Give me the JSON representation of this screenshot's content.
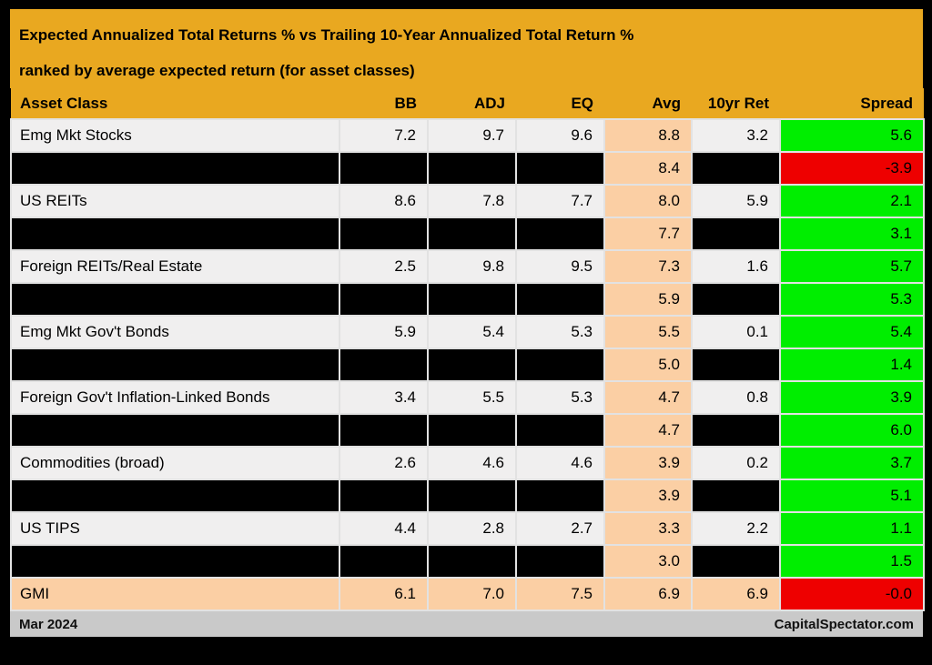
{
  "chart_data": {
    "type": "table",
    "title": "Expected Annualized Total Returns % vs Trailing 10-Year Annualized Total Return %",
    "subtitle": "ranked by average expected return (for asset classes)",
    "columns": [
      "Asset Class",
      "BB",
      "ADJ",
      "EQ",
      "Avg",
      "10yr Ret",
      "Spread"
    ],
    "rows": [
      {
        "asset": "Emg Mkt Stocks",
        "bb": "7.2",
        "adj": "9.7",
        "eq": "9.6",
        "avg": "8.8",
        "ret10": "3.2",
        "spread": "5.6",
        "style": "normal",
        "spread_color": "green"
      },
      {
        "asset": "",
        "bb": "",
        "adj": "",
        "eq": "",
        "avg": "8.4",
        "ret10": "",
        "spread": "-3.9",
        "style": "redacted",
        "spread_color": "red"
      },
      {
        "asset": "US REITs",
        "bb": "8.6",
        "adj": "7.8",
        "eq": "7.7",
        "avg": "8.0",
        "ret10": "5.9",
        "spread": "2.1",
        "style": "normal",
        "spread_color": "green"
      },
      {
        "asset": "",
        "bb": "",
        "adj": "",
        "eq": "",
        "avg": "7.7",
        "ret10": "",
        "spread": "3.1",
        "style": "redacted",
        "spread_color": "green"
      },
      {
        "asset": "Foreign REITs/Real Estate",
        "bb": "2.5",
        "adj": "9.8",
        "eq": "9.5",
        "avg": "7.3",
        "ret10": "1.6",
        "spread": "5.7",
        "style": "normal",
        "spread_color": "green"
      },
      {
        "asset": "",
        "bb": "",
        "adj": "",
        "eq": "",
        "avg": "5.9",
        "ret10": "",
        "spread": "5.3",
        "style": "redacted",
        "spread_color": "green"
      },
      {
        "asset": "Emg Mkt Gov't Bonds",
        "bb": "5.9",
        "adj": "5.4",
        "eq": "5.3",
        "avg": "5.5",
        "ret10": "0.1",
        "spread": "5.4",
        "style": "normal",
        "spread_color": "green"
      },
      {
        "asset": "",
        "bb": "",
        "adj": "",
        "eq": "",
        "avg": "5.0",
        "ret10": "",
        "spread": "1.4",
        "style": "redacted",
        "spread_color": "green"
      },
      {
        "asset": "Foreign Gov't Inflation-Linked Bonds",
        "bb": "3.4",
        "adj": "5.5",
        "eq": "5.3",
        "avg": "4.7",
        "ret10": "0.8",
        "spread": "3.9",
        "style": "normal",
        "spread_color": "green"
      },
      {
        "asset": "",
        "bb": "",
        "adj": "",
        "eq": "",
        "avg": "4.7",
        "ret10": "",
        "spread": "6.0",
        "style": "redacted",
        "spread_color": "green"
      },
      {
        "asset": "Commodities (broad)",
        "bb": "2.6",
        "adj": "4.6",
        "eq": "4.6",
        "avg": "3.9",
        "ret10": "0.2",
        "spread": "3.7",
        "style": "normal",
        "spread_color": "green"
      },
      {
        "asset": "",
        "bb": "",
        "adj": "",
        "eq": "",
        "avg": "3.9",
        "ret10": "",
        "spread": "5.1",
        "style": "redacted",
        "spread_color": "green"
      },
      {
        "asset": "US TIPS",
        "bb": "4.4",
        "adj": "2.8",
        "eq": "2.7",
        "avg": "3.3",
        "ret10": "2.2",
        "spread": "1.1",
        "style": "normal",
        "spread_color": "green"
      },
      {
        "asset": "",
        "bb": "",
        "adj": "",
        "eq": "",
        "avg": "3.0",
        "ret10": "",
        "spread": "1.5",
        "style": "redacted",
        "spread_color": "green"
      },
      {
        "asset": "GMI",
        "bb": "6.1",
        "adj": "7.0",
        "eq": "7.5",
        "avg": "6.9",
        "ret10": "6.9",
        "spread": "-0.0",
        "style": "gmi",
        "spread_color": "red"
      }
    ]
  },
  "footer": {
    "date": "Mar 2024",
    "source": "CapitalSpectator.com"
  },
  "colors": {
    "gold": "#e9a820",
    "peach": "#fbcfa4",
    "green": "#00ee00",
    "red": "#ee0000",
    "row_gray": "#f0efef",
    "footer_gray": "#c9c9c9"
  }
}
